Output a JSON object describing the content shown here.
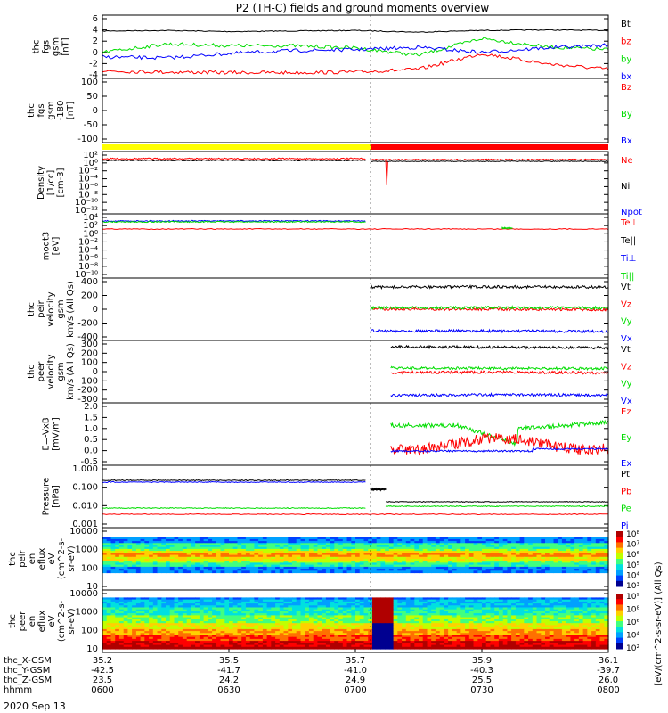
{
  "title": "P2 (TH-C) fields and ground moments overview",
  "date_label": "2020 Sep 13",
  "colors": {
    "black": "#000000",
    "red": "#ff0000",
    "green": "#00dd00",
    "blue": "#0000ff",
    "yellow": "#ffff00"
  },
  "chart_data": [
    {
      "type": "line",
      "panel": "fgs_gsm",
      "ylabel": [
        "thc",
        "fgs",
        "gsm",
        "[nT]"
      ],
      "yticks": [
        "6",
        "4",
        "2",
        "0",
        "-2",
        "-4"
      ],
      "series": [
        {
          "name": "Bt",
          "color": "black",
          "values": [
            3.8,
            3.9,
            3.7,
            3.8,
            3.9,
            3.6,
            3.9,
            4.0,
            3.9
          ]
        },
        {
          "name": "bz",
          "color": "red",
          "values": [
            -3.3,
            -3.5,
            -3.6,
            -3.6,
            -3.5,
            -3.0,
            -0.2,
            -2.0,
            -3.0
          ]
        },
        {
          "name": "by",
          "color": "green",
          "values": [
            0.0,
            1.5,
            1.2,
            1.2,
            0.8,
            -0.5,
            2.5,
            1.0,
            0.5
          ]
        },
        {
          "name": "bx",
          "color": "blue",
          "values": [
            -0.8,
            -1.0,
            -0.2,
            0.3,
            0.5,
            0.9,
            0.0,
            0.8,
            1.3
          ]
        }
      ]
    },
    {
      "type": "line",
      "panel": "fgs_gsm_fixed",
      "ylabel": [
        "thc",
        "fgs",
        "gsm",
        "-180",
        "[nT]"
      ],
      "yticks": [
        "100",
        "50",
        "0",
        "-50",
        "-100"
      ],
      "series": [
        {
          "name": "Bz",
          "color": "red"
        },
        {
          "name": "By",
          "color": "green"
        },
        {
          "name": "Bx",
          "color": "blue"
        }
      ]
    },
    {
      "type": "line",
      "panel": "density",
      "ylabel": [
        "Density",
        "[1/cc]",
        "[cm-3]"
      ],
      "yticks": [
        "10²",
        "10⁰",
        "10⁻²",
        "10⁻⁴",
        "10⁻⁶",
        "10⁻⁸",
        "10⁻¹⁰",
        "10⁻¹²"
      ],
      "series": [
        {
          "name": "Ne",
          "color": "red"
        },
        {
          "name": "Ni",
          "color": "black"
        },
        {
          "name": "Npot",
          "color": "blue"
        }
      ]
    },
    {
      "type": "line",
      "panel": "temperature",
      "ylabel": [
        "moqt3",
        "[eV]"
      ],
      "yticks": [
        "10⁴",
        "10²",
        "10⁰",
        "10⁻²",
        "10⁻⁴",
        "10⁻⁶",
        "10⁻⁸",
        "10⁻¹⁰"
      ],
      "series": [
        {
          "name": "Te⊥",
          "color": "red"
        },
        {
          "name": "Te||",
          "color": "black"
        },
        {
          "name": "Ti⊥",
          "color": "blue"
        },
        {
          "name": "Ti||",
          "color": "green"
        }
      ]
    },
    {
      "type": "line",
      "panel": "peir_velocity",
      "ylabel": [
        "thc",
        "peir",
        "velocity",
        "gsm",
        "km/s (All Qs)"
      ],
      "yticks": [
        "400",
        "200",
        "0",
        "-200",
        "-400"
      ],
      "series": [
        {
          "name": "Vt",
          "color": "black",
          "values": [
            320,
            325,
            320
          ]
        },
        {
          "name": "Vz",
          "color": "red",
          "values": [
            5,
            0,
            -5
          ]
        },
        {
          "name": "Vy",
          "color": "green",
          "values": [
            20,
            25,
            20
          ]
        },
        {
          "name": "Vx",
          "color": "blue",
          "values": [
            -310,
            -315,
            -320
          ]
        }
      ]
    },
    {
      "type": "line",
      "panel": "peer_velocity",
      "ylabel": [
        "thc",
        "peer",
        "velocity",
        "gsm",
        "km/s (All Qs)"
      ],
      "yticks": [
        "300",
        "200",
        "100",
        "0",
        "-100",
        "-200",
        "-300"
      ],
      "series": [
        {
          "name": "Vt",
          "color": "black",
          "values": [
            270,
            265,
            260
          ]
        },
        {
          "name": "Vz",
          "color": "red",
          "values": [
            -10,
            -5,
            -15
          ]
        },
        {
          "name": "Vy",
          "color": "green",
          "values": [
            40,
            35,
            35
          ]
        },
        {
          "name": "Vx",
          "color": "blue",
          "values": [
            -260,
            -250,
            -255
          ]
        }
      ]
    },
    {
      "type": "line",
      "panel": "efield",
      "ylabel": [
        "E=-VxB",
        "[mV/m]"
      ],
      "yticks": [
        "2.0",
        "1.5",
        "1.0",
        "0.5",
        "0.0",
        "-0.5"
      ],
      "series": [
        {
          "name": "Ez",
          "color": "red"
        },
        {
          "name": "Ey",
          "color": "green"
        },
        {
          "name": "Ex",
          "color": "blue"
        }
      ]
    },
    {
      "type": "line",
      "panel": "pressure",
      "ylabel": [
        "Pressure",
        "[nPa]"
      ],
      "yticks": [
        "1.000",
        "0.100",
        "0.010",
        "0.001"
      ],
      "series": [
        {
          "name": "Pt",
          "color": "black"
        },
        {
          "name": "Pb",
          "color": "red"
        },
        {
          "name": "Pe",
          "color": "green"
        },
        {
          "name": "Pi",
          "color": "blue"
        }
      ]
    },
    {
      "type": "heatmap",
      "panel": "peir_en_eflux",
      "ylabel": [
        "thc",
        "peir",
        "en",
        "eflux",
        "eV",
        "(cm^2-s-",
        "sr-eV)"
      ],
      "yticks": [
        "10000",
        "1000",
        "100",
        "10"
      ]
    },
    {
      "type": "heatmap",
      "panel": "peer_en_eflux",
      "ylabel": [
        "thc",
        "peer",
        "en",
        "eflux",
        "eV",
        "(cm^2-s-",
        "sr-eV)"
      ],
      "yticks": [
        "10000",
        "1000",
        "100",
        "10"
      ]
    }
  ],
  "colorbars": [
    {
      "ticks": [
        "10⁸",
        "10⁷",
        "10⁶",
        "10⁵",
        "10⁴",
        "10³"
      ],
      "label": "[eV/(cm^2-s-sr-eV)] (All Qs)"
    },
    {
      "ticks": [
        "10⁹",
        "10⁸",
        "10⁶",
        "10⁴",
        "10²"
      ],
      "label": "[eV/(cm^2-s-sr-eV)] (All Qs)"
    }
  ],
  "xaxis": {
    "row_labels": [
      "thc_X-GSM",
      "thc_Y-GSM",
      "thc_Z-GSM",
      "hhmm"
    ],
    "columns": [
      [
        "35.2",
        "-42.5",
        "23.5",
        "0600"
      ],
      [
        "35.5",
        "-41.7",
        "24.2",
        "0630"
      ],
      [
        "35.7",
        "-41.0",
        "24.9",
        "0700"
      ],
      [
        "35.9",
        "-40.3",
        "25.5",
        "0730"
      ],
      [
        "36.1",
        "-39.7",
        "26.0",
        "0800"
      ]
    ]
  }
}
